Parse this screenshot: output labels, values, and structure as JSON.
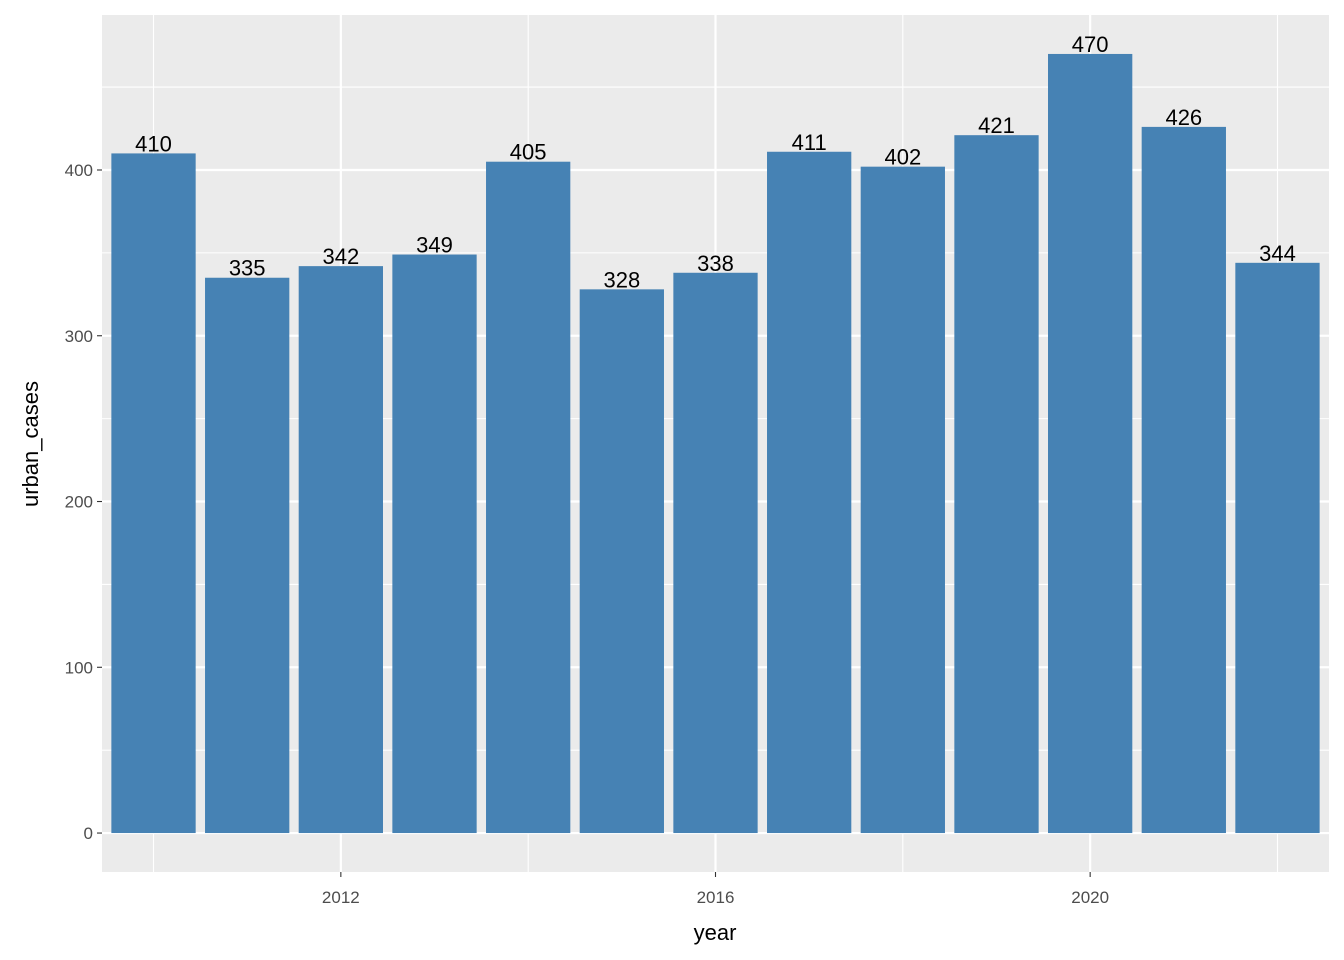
{
  "chart_data": {
    "type": "bar",
    "x": [
      2010,
      2011,
      2012,
      2013,
      2014,
      2015,
      2016,
      2017,
      2018,
      2019,
      2020,
      2021,
      2022
    ],
    "values": [
      410,
      335,
      342,
      349,
      405,
      328,
      338,
      411,
      402,
      421,
      470,
      426,
      344
    ],
    "data_labels": [
      "410",
      "335",
      "342",
      "349",
      "405",
      "328",
      "338",
      "411",
      "402",
      "421",
      "470",
      "426",
      "344"
    ],
    "xlabel": "year",
    "ylabel": "urban_cases",
    "x_ticks": [
      2012,
      2016,
      2020
    ],
    "x_tick_labels": [
      "2012",
      "2016",
      "2020"
    ],
    "y_ticks": [
      0,
      100,
      200,
      300,
      400
    ],
    "y_tick_labels": [
      "0",
      "100",
      "200",
      "300",
      "400"
    ],
    "xlim": [
      2009.45,
      2022.55
    ],
    "ylim": [
      -23.5,
      493.5
    ],
    "grid": true,
    "colors": {
      "bar": "#4682b4",
      "panel": "#ebebeb",
      "grid": "#ffffff"
    }
  }
}
